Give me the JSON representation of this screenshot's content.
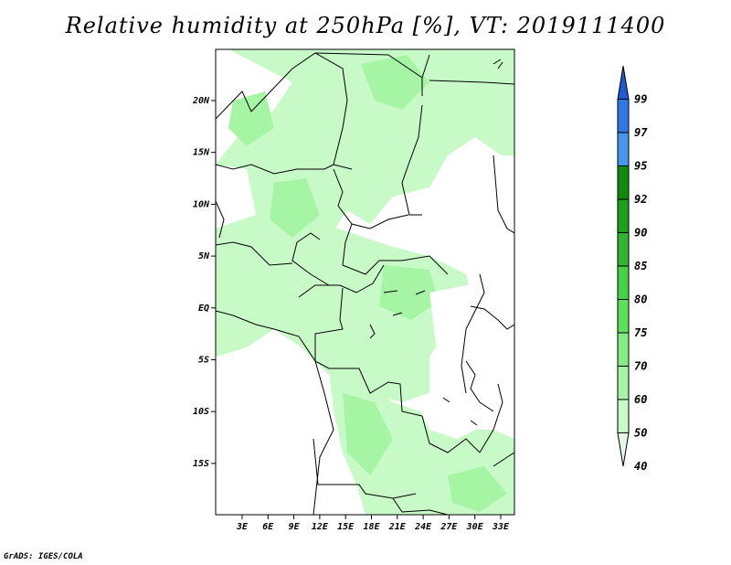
{
  "title": "Relative humidity at 250hPa [%], VT: 2019111400",
  "credit": "GrADS: IGES/COLA",
  "lat_labels": [
    "20N",
    "15N",
    "10N",
    "5N",
    "EQ",
    "5S",
    "10S",
    "15S"
  ],
  "lon_labels": [
    "3E",
    "6E",
    "9E",
    "12E",
    "15E",
    "18E",
    "21E",
    "24E",
    "27E",
    "30E",
    "33E"
  ],
  "colorbar": {
    "levels": [
      "99",
      "97",
      "95",
      "92",
      "90",
      "85",
      "80",
      "75",
      "70",
      "60",
      "50",
      "40"
    ],
    "colors": [
      "#1e5ad2",
      "#2f78e6",
      "#4696ee",
      "#0f8c0f",
      "#1ea01e",
      "#32b432",
      "#46d246",
      "#5ae15a",
      "#82ee82",
      "#a5f5a5",
      "#c8fac8",
      "#e6fce6"
    ]
  }
}
